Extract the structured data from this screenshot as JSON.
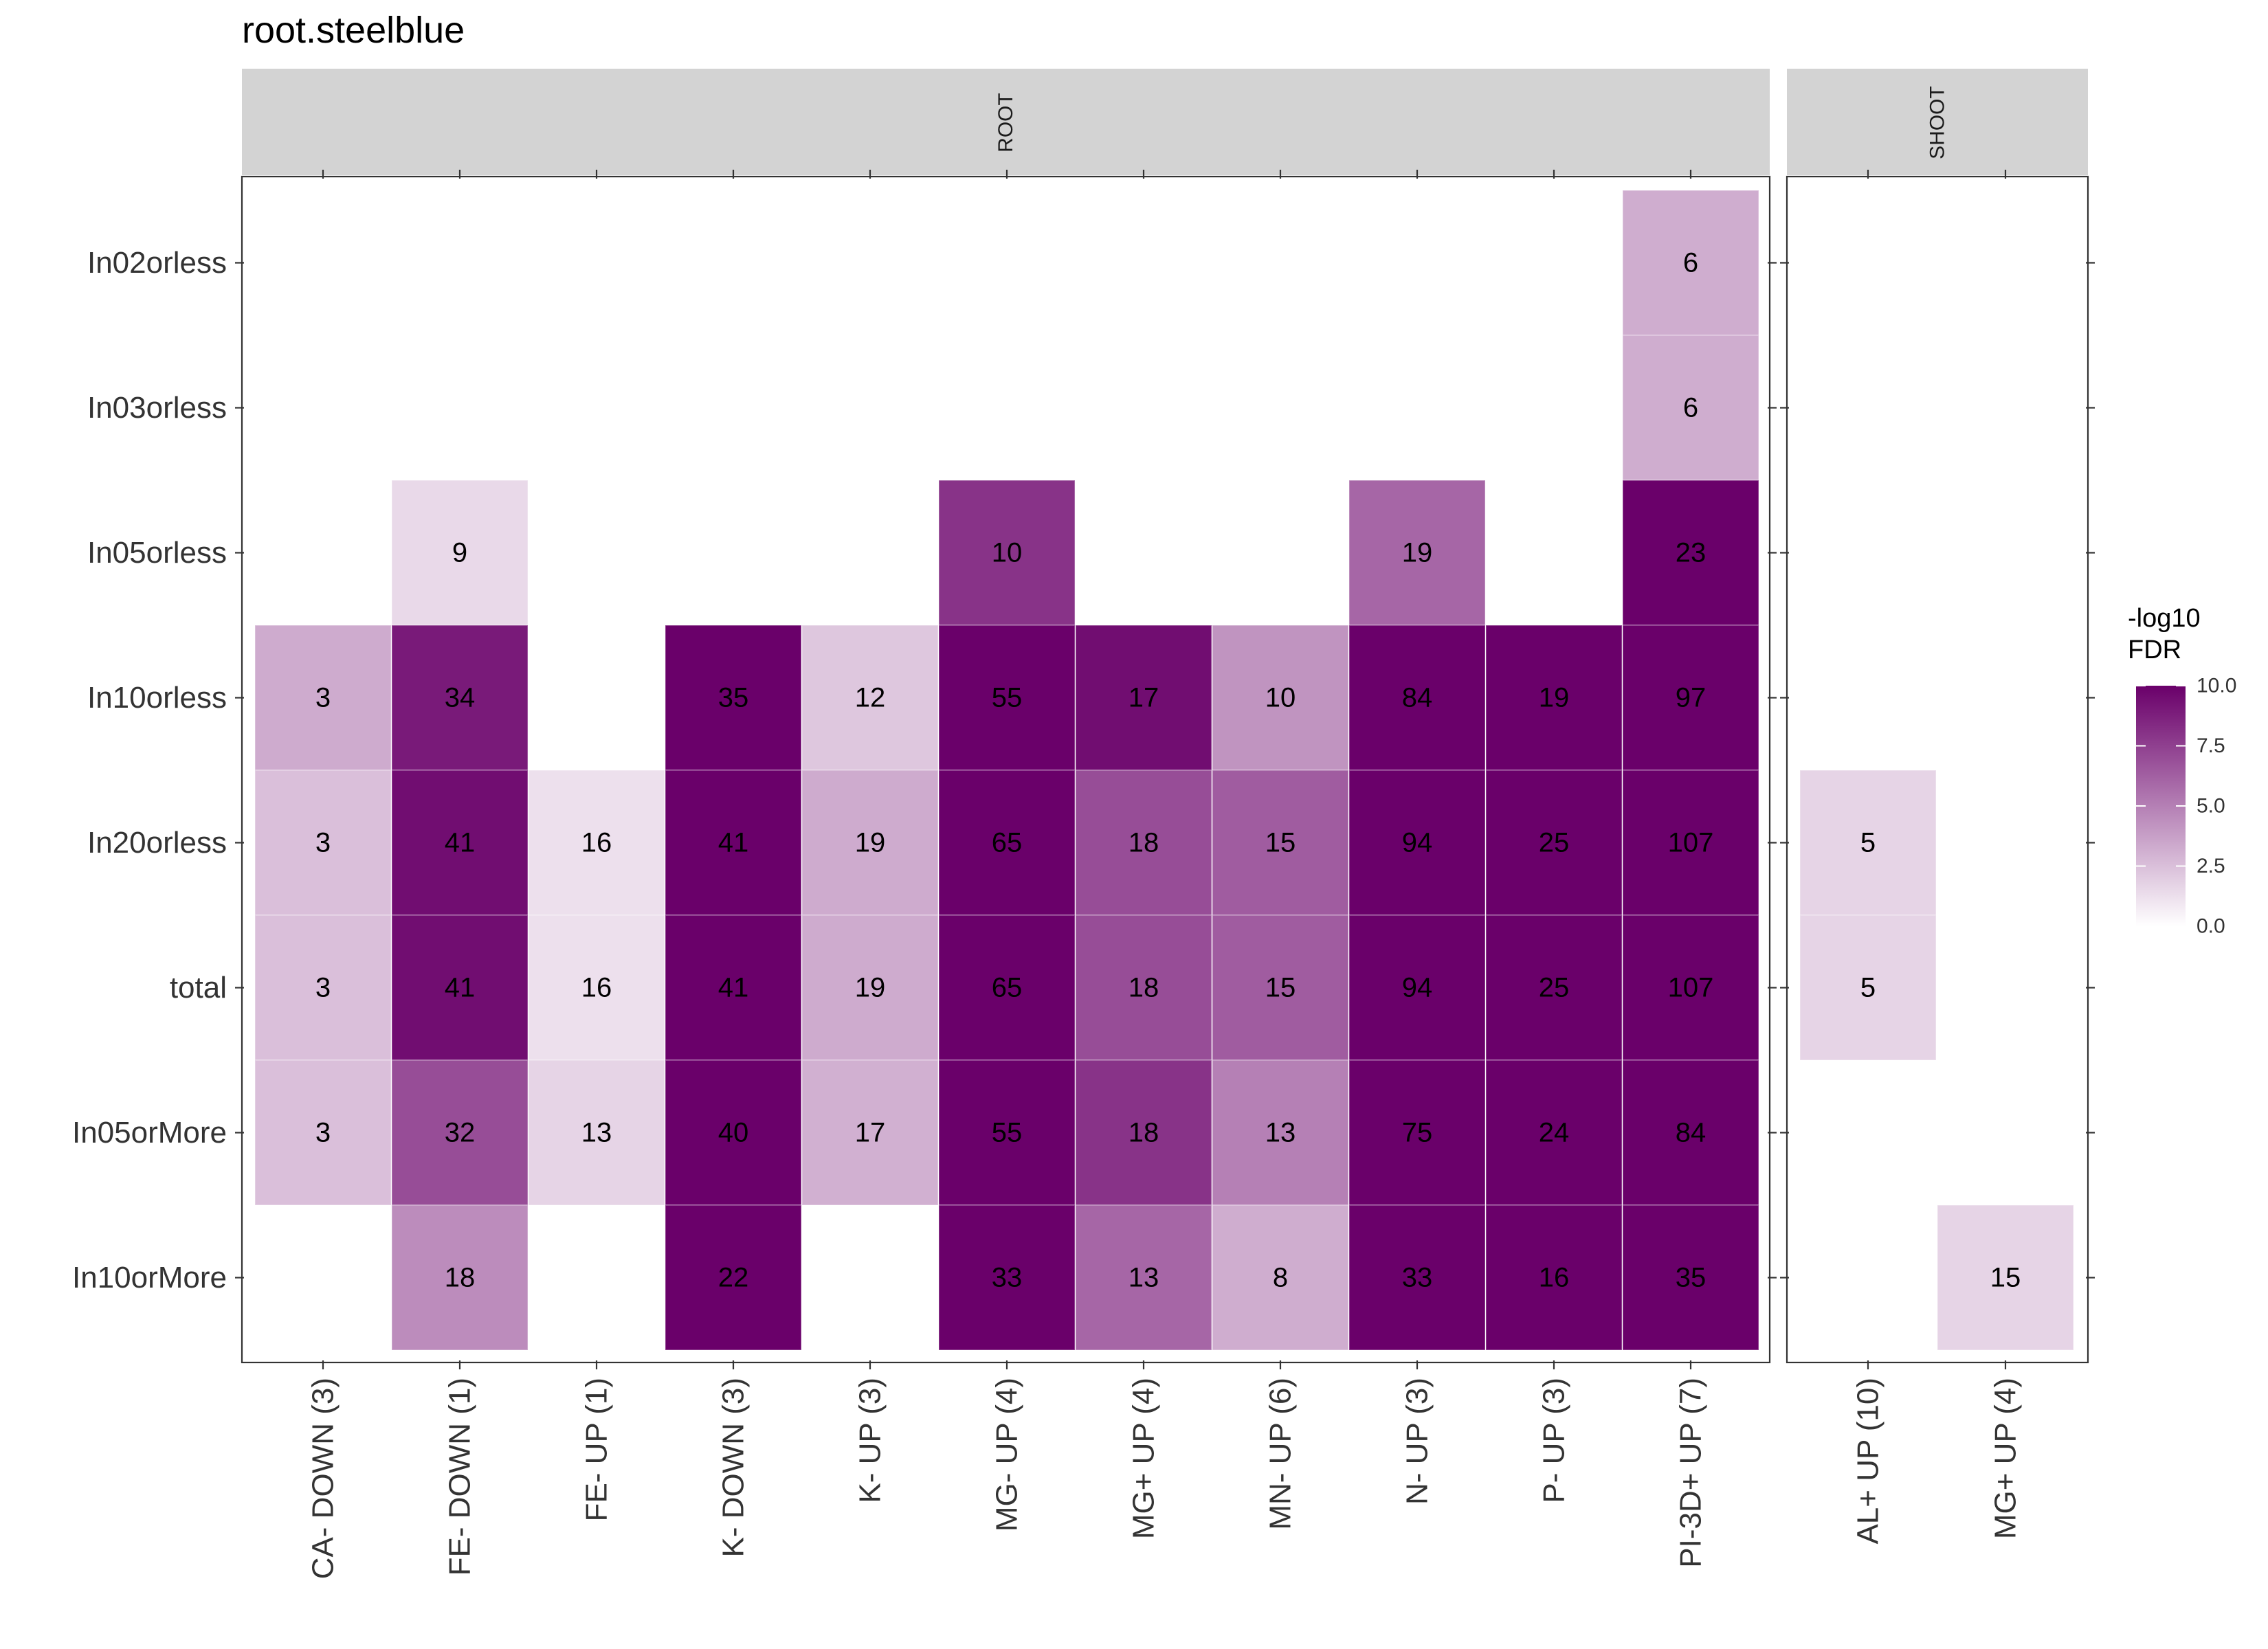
{
  "chart_data": {
    "type": "heatmap",
    "title": "root.steelblue",
    "facets": [
      "ROOT",
      "SHOOT"
    ],
    "rows": [
      "In02orless",
      "In03orless",
      "In05orless",
      "In10orless",
      "In20orless",
      "total",
      "In05orMore",
      "In10orMore"
    ],
    "columns": {
      "ROOT": [
        "CA- DOWN (3)",
        "FE- DOWN (1)",
        "FE- UP (1)",
        "K- DOWN (3)",
        "K- UP (3)",
        "MG- UP (4)",
        "MG+ UP (4)",
        "MN- UP (6)",
        "N- UP (3)",
        "P- UP (3)",
        "PI-3D+ UP (7)"
      ],
      "SHOOT": [
        "AL+ UP (10)",
        "MG+ UP (4)"
      ]
    },
    "cells": [
      {
        "facet": "ROOT",
        "col": "PI-3D+ UP (7)",
        "row": "In02orless",
        "label": "6",
        "fdr": 3.2
      },
      {
        "facet": "ROOT",
        "col": "PI-3D+ UP (7)",
        "row": "In03orless",
        "label": "6",
        "fdr": 3.2
      },
      {
        "facet": "ROOT",
        "col": "FE- DOWN (1)",
        "row": "In05orless",
        "label": "9",
        "fdr": 1.5
      },
      {
        "facet": "ROOT",
        "col": "MG- UP (4)",
        "row": "In05orless",
        "label": "10",
        "fdr": 8.0
      },
      {
        "facet": "ROOT",
        "col": "N- UP (3)",
        "row": "In05orless",
        "label": "19",
        "fdr": 6.0
      },
      {
        "facet": "ROOT",
        "col": "PI-3D+ UP (7)",
        "row": "In05orless",
        "label": "23",
        "fdr": 10.0
      },
      {
        "facet": "ROOT",
        "col": "CA- DOWN (3)",
        "row": "In10orless",
        "label": "3",
        "fdr": 3.3
      },
      {
        "facet": "ROOT",
        "col": "FE- DOWN (1)",
        "row": "In10orless",
        "label": "34",
        "fdr": 9.0
      },
      {
        "facet": "ROOT",
        "col": "K- DOWN (3)",
        "row": "In10orless",
        "label": "35",
        "fdr": 10.0
      },
      {
        "facet": "ROOT",
        "col": "K- UP (3)",
        "row": "In10orless",
        "label": "12",
        "fdr": 2.2
      },
      {
        "facet": "ROOT",
        "col": "MG- UP (4)",
        "row": "In10orless",
        "label": "55",
        "fdr": 10.0
      },
      {
        "facet": "ROOT",
        "col": "MG+ UP (4)",
        "row": "In10orless",
        "label": "17",
        "fdr": 9.5
      },
      {
        "facet": "ROOT",
        "col": "MN- UP (6)",
        "row": "In10orless",
        "label": "10",
        "fdr": 4.2
      },
      {
        "facet": "ROOT",
        "col": "N- UP (3)",
        "row": "In10orless",
        "label": "84",
        "fdr": 10.0
      },
      {
        "facet": "ROOT",
        "col": "P- UP (3)",
        "row": "In10orless",
        "label": "19",
        "fdr": 10.0
      },
      {
        "facet": "ROOT",
        "col": "PI-3D+ UP (7)",
        "row": "In10orless",
        "label": "97",
        "fdr": 10.0
      },
      {
        "facet": "ROOT",
        "col": "CA- DOWN (3)",
        "row": "In20orless",
        "label": "3",
        "fdr": 2.5
      },
      {
        "facet": "ROOT",
        "col": "FE- DOWN (1)",
        "row": "In20orless",
        "label": "41",
        "fdr": 9.5
      },
      {
        "facet": "ROOT",
        "col": "FE- UP (1)",
        "row": "In20orless",
        "label": "16",
        "fdr": 1.2
      },
      {
        "facet": "ROOT",
        "col": "K- DOWN (3)",
        "row": "In20orless",
        "label": "41",
        "fdr": 10.0
      },
      {
        "facet": "ROOT",
        "col": "K- UP (3)",
        "row": "In20orless",
        "label": "19",
        "fdr": 3.3
      },
      {
        "facet": "ROOT",
        "col": "MG- UP (4)",
        "row": "In20orless",
        "label": "65",
        "fdr": 10.0
      },
      {
        "facet": "ROOT",
        "col": "MG+ UP (4)",
        "row": "In20orless",
        "label": "18",
        "fdr": 7.0
      },
      {
        "facet": "ROOT",
        "col": "MN- UP (6)",
        "row": "In20orless",
        "label": "15",
        "fdr": 6.4
      },
      {
        "facet": "ROOT",
        "col": "N- UP (3)",
        "row": "In20orless",
        "label": "94",
        "fdr": 10.0
      },
      {
        "facet": "ROOT",
        "col": "P- UP (3)",
        "row": "In20orless",
        "label": "25",
        "fdr": 10.0
      },
      {
        "facet": "ROOT",
        "col": "PI-3D+ UP (7)",
        "row": "In20orless",
        "label": "107",
        "fdr": 10.0
      },
      {
        "facet": "ROOT",
        "col": "CA- DOWN (3)",
        "row": "total",
        "label": "3",
        "fdr": 2.5
      },
      {
        "facet": "ROOT",
        "col": "FE- DOWN (1)",
        "row": "total",
        "label": "41",
        "fdr": 9.5
      },
      {
        "facet": "ROOT",
        "col": "FE- UP (1)",
        "row": "total",
        "label": "16",
        "fdr": 1.2
      },
      {
        "facet": "ROOT",
        "col": "K- DOWN (3)",
        "row": "total",
        "label": "41",
        "fdr": 10.0
      },
      {
        "facet": "ROOT",
        "col": "K- UP (3)",
        "row": "total",
        "label": "19",
        "fdr": 3.3
      },
      {
        "facet": "ROOT",
        "col": "MG- UP (4)",
        "row": "total",
        "label": "65",
        "fdr": 10.0
      },
      {
        "facet": "ROOT",
        "col": "MG+ UP (4)",
        "row": "total",
        "label": "18",
        "fdr": 7.0
      },
      {
        "facet": "ROOT",
        "col": "MN- UP (6)",
        "row": "total",
        "label": "15",
        "fdr": 6.4
      },
      {
        "facet": "ROOT",
        "col": "N- UP (3)",
        "row": "total",
        "label": "94",
        "fdr": 10.0
      },
      {
        "facet": "ROOT",
        "col": "P- UP (3)",
        "row": "total",
        "label": "25",
        "fdr": 10.0
      },
      {
        "facet": "ROOT",
        "col": "PI-3D+ UP (7)",
        "row": "total",
        "label": "107",
        "fdr": 10.0
      },
      {
        "facet": "ROOT",
        "col": "CA- DOWN (3)",
        "row": "In05orMore",
        "label": "3",
        "fdr": 2.5
      },
      {
        "facet": "ROOT",
        "col": "FE- DOWN (1)",
        "row": "In05orMore",
        "label": "32",
        "fdr": 7.0
      },
      {
        "facet": "ROOT",
        "col": "FE- UP (1)",
        "row": "In05orMore",
        "label": "13",
        "fdr": 1.7
      },
      {
        "facet": "ROOT",
        "col": "K- DOWN (3)",
        "row": "In05orMore",
        "label": "40",
        "fdr": 10.0
      },
      {
        "facet": "ROOT",
        "col": "K- UP (3)",
        "row": "In05orMore",
        "label": "17",
        "fdr": 3.1
      },
      {
        "facet": "ROOT",
        "col": "MG- UP (4)",
        "row": "In05orMore",
        "label": "55",
        "fdr": 10.0
      },
      {
        "facet": "ROOT",
        "col": "MG+ UP (4)",
        "row": "In05orMore",
        "label": "18",
        "fdr": 8.0
      },
      {
        "facet": "ROOT",
        "col": "MN- UP (6)",
        "row": "In05orMore",
        "label": "13",
        "fdr": 5.0
      },
      {
        "facet": "ROOT",
        "col": "N- UP (3)",
        "row": "In05orMore",
        "label": "75",
        "fdr": 10.0
      },
      {
        "facet": "ROOT",
        "col": "P- UP (3)",
        "row": "In05orMore",
        "label": "24",
        "fdr": 10.0
      },
      {
        "facet": "ROOT",
        "col": "PI-3D+ UP (7)",
        "row": "In05orMore",
        "label": "84",
        "fdr": 10.0
      },
      {
        "facet": "ROOT",
        "col": "FE- DOWN (1)",
        "row": "In10orMore",
        "label": "18",
        "fdr": 4.5
      },
      {
        "facet": "ROOT",
        "col": "K- DOWN (3)",
        "row": "In10orMore",
        "label": "22",
        "fdr": 10.0
      },
      {
        "facet": "ROOT",
        "col": "MG- UP (4)",
        "row": "In10orMore",
        "label": "33",
        "fdr": 10.0
      },
      {
        "facet": "ROOT",
        "col": "MG+ UP (4)",
        "row": "In10orMore",
        "label": "13",
        "fdr": 6.0
      },
      {
        "facet": "ROOT",
        "col": "MN- UP (6)",
        "row": "In10orMore",
        "label": "8",
        "fdr": 3.2
      },
      {
        "facet": "ROOT",
        "col": "N- UP (3)",
        "row": "In10orMore",
        "label": "33",
        "fdr": 10.0
      },
      {
        "facet": "ROOT",
        "col": "P- UP (3)",
        "row": "In10orMore",
        "label": "16",
        "fdr": 10.0
      },
      {
        "facet": "ROOT",
        "col": "PI-3D+ UP (7)",
        "row": "In10orMore",
        "label": "35",
        "fdr": 10.0
      },
      {
        "facet": "SHOOT",
        "col": "AL+ UP (10)",
        "row": "In20orless",
        "label": "5",
        "fdr": 1.7
      },
      {
        "facet": "SHOOT",
        "col": "AL+ UP (10)",
        "row": "total",
        "label": "5",
        "fdr": 1.7
      },
      {
        "facet": "SHOOT",
        "col": "MG+ UP (4)",
        "row": "In10orMore",
        "label": "15",
        "fdr": 1.7
      }
    ],
    "legend": {
      "title": "-log10\nFDR",
      "min": 0.0,
      "max": 10.0,
      "ticks": [
        "0.0",
        "2.5",
        "5.0",
        "7.5",
        "10.0"
      ],
      "low_color": "#ffffff",
      "high_color": "#6a006a"
    }
  }
}
